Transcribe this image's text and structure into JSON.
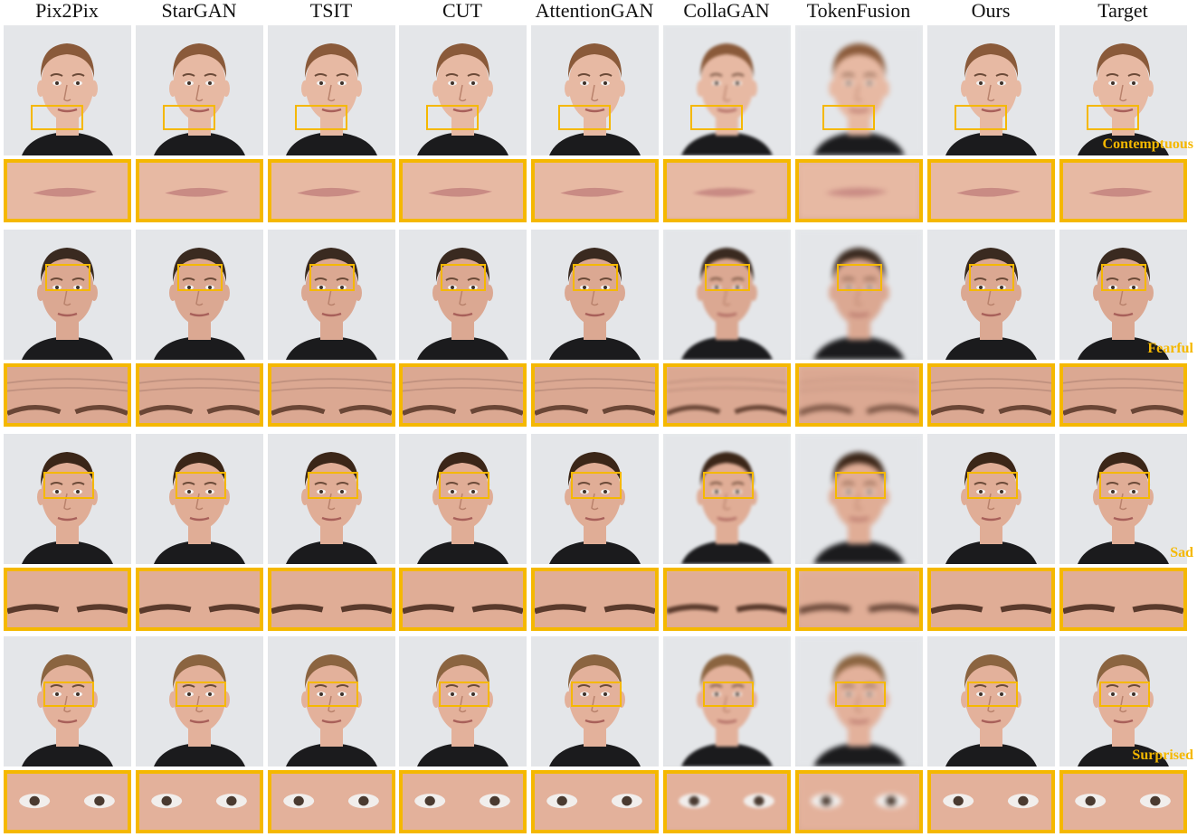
{
  "columns": [
    "Pix2Pix",
    "StarGAN",
    "TSIT",
    "CUT",
    "AttentionGAN",
    "CollaGAN",
    "TokenFusion",
    "Ours",
    "Target"
  ],
  "rows": [
    {
      "emotion": "Contemptuous",
      "crop_region": "mouth",
      "hair": "#8a5a3a",
      "skin": "#e7b9a3"
    },
    {
      "emotion": "Fearful",
      "crop_region": "forehead",
      "hair": "#3a2a20",
      "skin": "#dba892"
    },
    {
      "emotion": "Sad",
      "crop_region": "brows",
      "hair": "#3b2618",
      "skin": "#e0ad96"
    },
    {
      "emotion": "Surprised",
      "crop_region": "eyes",
      "hair": "#8b6440",
      "skin": "#e3b19b"
    }
  ],
  "colors": {
    "accent": "#f5b800"
  }
}
